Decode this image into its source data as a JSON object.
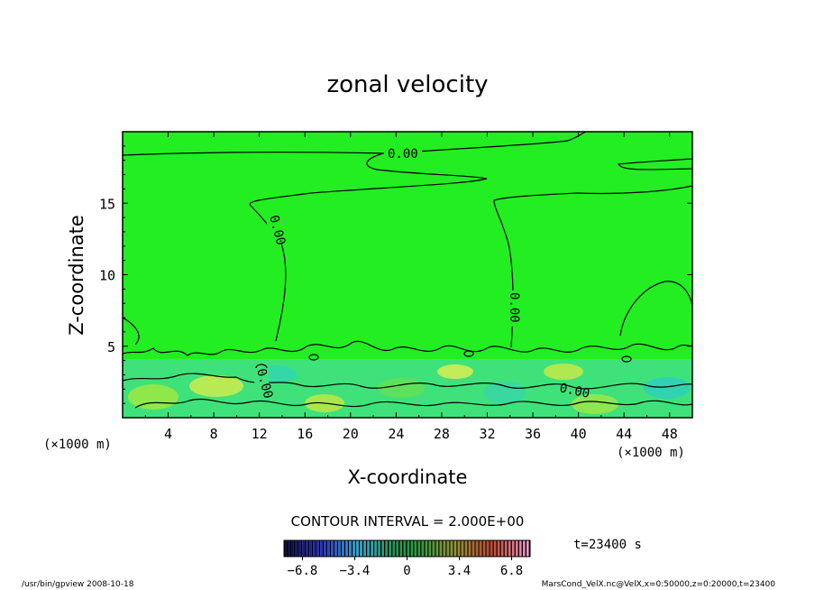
{
  "chart_data": {
    "type": "heatmap",
    "title": "zonal velocity",
    "xlabel": "X-coordinate",
    "ylabel": "Z-coordinate",
    "x_unit_left": "(×1000 m)",
    "x_unit_right": "(×1000 m)",
    "xlim": [
      0,
      50
    ],
    "ylim": [
      0,
      20
    ],
    "xticks": [
      4,
      8,
      12,
      16,
      20,
      24,
      28,
      32,
      36,
      40,
      44,
      48
    ],
    "yticks": [
      5,
      10,
      15
    ],
    "contour_label": "0.00",
    "contour_interval_text": "CONTOUR INTERVAL = 2.000E+00",
    "time_text": "t=23400 s",
    "colorbar": {
      "range": [
        -8,
        8
      ],
      "tick_values": [
        -6.8,
        -3.4,
        0,
        3.4,
        6.8
      ],
      "tick_labels": [
        "−6.8",
        "−3.4",
        "0",
        "3.4",
        "6.8"
      ]
    },
    "background_color": "#22ee22",
    "footer_left": "/usr/bin/gpview  2008-10-18",
    "footer_right": "MarsCond_VelX.nc@VelX,x=0:50000,z=0:20000,t=23400"
  }
}
